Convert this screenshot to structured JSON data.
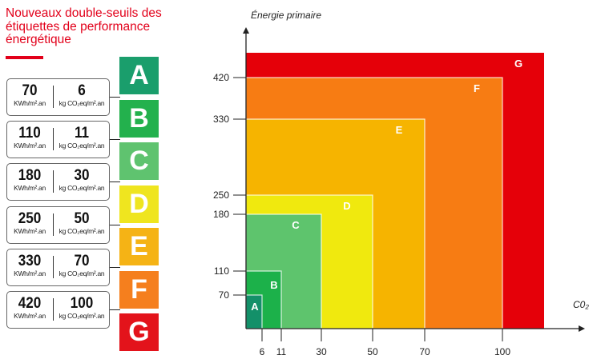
{
  "title": "Nouveaux double-seuils des étiquettes de performance énergétique",
  "unit_energy": "KWh/m².an",
  "unit_co2": "kg CO₂eq/m².an",
  "classes": [
    {
      "letter": "A",
      "energy": "70",
      "co2": "6",
      "color": "#1a9e6c",
      "chart_color": "#139069"
    },
    {
      "letter": "B",
      "energy": "110",
      "co2": "11",
      "color": "#23b14d",
      "chart_color": "#1cb14a"
    },
    {
      "letter": "C",
      "energy": "180",
      "co2": "30",
      "color": "#5fc36f",
      "chart_color": "#5ec46d"
    },
    {
      "letter": "D",
      "energy": "250",
      "co2": "50",
      "color": "#efe51f",
      "chart_color": "#f0e90e"
    },
    {
      "letter": "E",
      "energy": "330",
      "co2": "70",
      "color": "#f5b315",
      "chart_color": "#f6b400"
    },
    {
      "letter": "F",
      "energy": "420",
      "co2": "100",
      "color": "#f57f1e",
      "chart_color": "#f77c13"
    },
    {
      "letter": "G",
      "energy": "",
      "co2": "",
      "color": "#e3131b",
      "chart_color": "#e50009"
    }
  ],
  "chart_data": {
    "type": "nested-area",
    "ylabel": "Énergie primaire",
    "xlabel": "C0₂",
    "x_ticks": [
      "6",
      "11",
      "30",
      "50",
      "70",
      "100"
    ],
    "y_ticks": [
      "70",
      "110",
      "180",
      "250",
      "330",
      "420"
    ],
    "regions": [
      {
        "label": "A",
        "co2_max": 6,
        "energy_max": 70
      },
      {
        "label": "B",
        "co2_max": 11,
        "energy_max": 110
      },
      {
        "label": "C",
        "co2_max": 30,
        "energy_max": 180
      },
      {
        "label": "D",
        "co2_max": 50,
        "energy_max": 250
      },
      {
        "label": "E",
        "co2_max": 70,
        "energy_max": 330
      },
      {
        "label": "F",
        "co2_max": 100,
        "energy_max": 420
      },
      {
        "label": "G",
        "co2_max": null,
        "energy_max": null
      }
    ]
  }
}
